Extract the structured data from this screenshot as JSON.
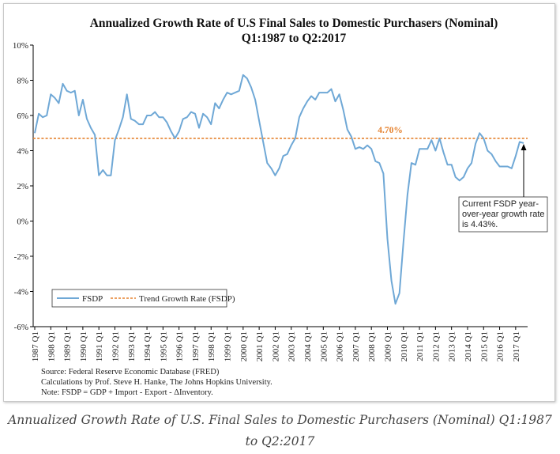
{
  "chart_data": {
    "type": "line",
    "title_line1": "Annualized Growth Rate of U.S Final Sales to Domestic Purchasers (Nominal)",
    "title_line2": "Q1:1987 to Q2:2017",
    "y_ticks": [
      "10%",
      "8%",
      "6%",
      "4%",
      "2%",
      "0%",
      "-2%",
      "-4%",
      "-6%"
    ],
    "ylim": [
      -6,
      10
    ],
    "x_ticks": [
      "1987 Q1",
      "1988 Q1",
      "1989 Q1",
      "1990 Q1",
      "1991 Q1",
      "1992 Q1",
      "1993 Q1",
      "1994 Q1",
      "1995 Q1",
      "1996 Q1",
      "1997 Q1",
      "1998 Q1",
      "1999 Q1",
      "2000 Q1",
      "2001 Q1",
      "2002 Q1",
      "2003 Q1",
      "2004 Q1",
      "2005 Q1",
      "2006 Q1",
      "2007 Q1",
      "2008 Q1",
      "2009 Q1",
      "2010 Q1",
      "2011 Q1",
      "2012 Q1",
      "2013 Q1",
      "2014 Q1",
      "2015 Q1",
      "2016 Q1",
      "2017 Q1"
    ],
    "series": [
      {
        "name": "FSDP",
        "color": "#6fa8d6",
        "values": [
          5.0,
          6.1,
          5.9,
          6.0,
          7.2,
          7.0,
          6.7,
          7.8,
          7.4,
          7.3,
          7.4,
          6.0,
          6.9,
          5.8,
          5.3,
          4.9,
          2.6,
          2.9,
          2.6,
          2.6,
          4.6,
          5.2,
          5.9,
          7.2,
          5.8,
          5.7,
          5.5,
          5.5,
          6.0,
          6.0,
          6.2,
          5.9,
          5.9,
          5.6,
          5.1,
          4.7,
          5.1,
          5.8,
          5.9,
          6.2,
          6.1,
          5.3,
          6.1,
          5.9,
          5.5,
          6.7,
          6.4,
          6.9,
          7.3,
          7.2,
          7.3,
          7.4,
          8.3,
          8.1,
          7.6,
          6.9,
          5.7,
          4.5,
          3.3,
          3.0,
          2.6,
          3.0,
          3.7,
          3.8,
          4.3,
          4.7,
          5.9,
          6.4,
          6.8,
          7.1,
          6.9,
          7.3,
          7.3,
          7.3,
          7.5,
          6.8,
          7.2,
          6.3,
          5.2,
          4.8,
          4.1,
          4.2,
          4.1,
          4.3,
          4.1,
          3.4,
          3.3,
          2.7,
          -1.0,
          -3.4,
          -4.7,
          -4.1,
          -1.2,
          1.5,
          3.3,
          3.2,
          4.1,
          4.1,
          4.1,
          4.6,
          4.0,
          4.7,
          3.9,
          3.2,
          3.2,
          2.5,
          2.3,
          2.5,
          3.0,
          3.3,
          4.4,
          5.0,
          4.7,
          4.0,
          3.8,
          3.4,
          3.1,
          3.1,
          3.1,
          3.0,
          3.7,
          4.5,
          4.43
        ]
      }
    ],
    "trend": {
      "name": "Trend Growth Rate (FSDP)",
      "value": 4.7,
      "label": "4.70%",
      "color": "#e5822f"
    },
    "legend_position": "bottom-left",
    "grid": false,
    "annotation": [
      "Current FSDP year-",
      "over-year growth rate",
      "is 4.43%."
    ],
    "source_notes": [
      "Source: Federal Reserve Economic Database (FRED)",
      "Calculations by Prof. Steve H. Hanke, The Johns Hopkins University.",
      "Note: FSDP = GDP + Import - Export - ΔInventory."
    ]
  },
  "caption": "Annualized Growth Rate of U.S. Final Sales to Domestic Purchasers (Nominal) Q1:1987 to Q2:2017"
}
